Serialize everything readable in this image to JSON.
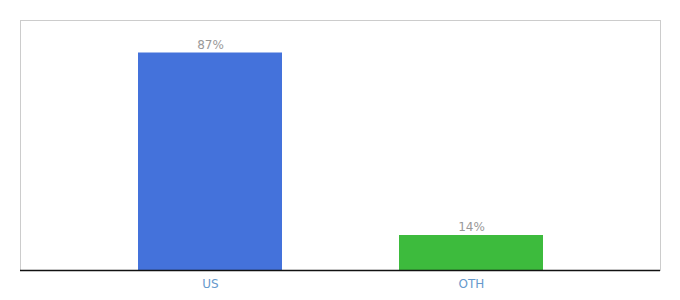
{
  "chart_data": {
    "type": "bar",
    "categories": [
      "US",
      "OTH"
    ],
    "values": [
      87,
      14
    ],
    "value_labels": [
      "87%",
      "14%"
    ],
    "colors": [
      "#4472db",
      "#3dbb3d"
    ],
    "ylim": [
      0,
      100
    ],
    "data_labels": true,
    "tick_labels": "x",
    "grid": false
  }
}
